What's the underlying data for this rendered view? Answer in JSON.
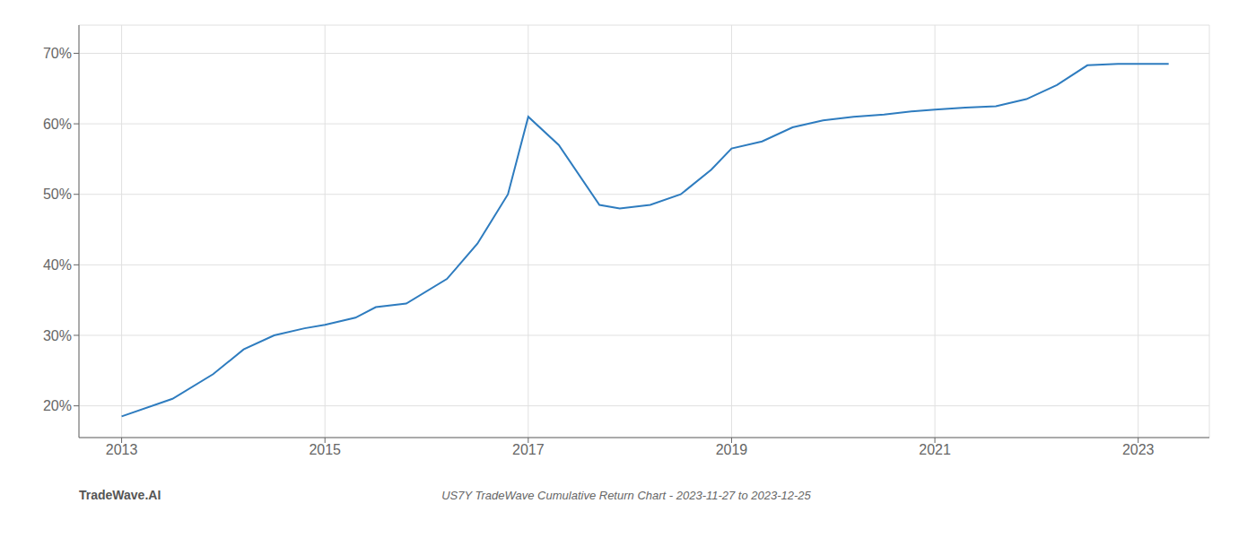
{
  "chart_data": {
    "type": "line",
    "title": "US7Y TradeWave Cumulative Return Chart - 2023-11-27 to 2023-12-25",
    "annotations": [
      "TradeWave.AI"
    ],
    "x": [
      2013.0,
      2013.5,
      2013.9,
      2014.2,
      2014.5,
      2014.8,
      2015.0,
      2015.3,
      2015.5,
      2015.8,
      2016.2,
      2016.5,
      2016.8,
      2017.0,
      2017.3,
      2017.7,
      2017.9,
      2018.2,
      2018.5,
      2018.8,
      2019.0,
      2019.3,
      2019.6,
      2019.9,
      2020.2,
      2020.5,
      2020.8,
      2021.0,
      2021.3,
      2021.6,
      2021.9,
      2022.2,
      2022.5,
      2022.8,
      2023.0,
      2023.3
    ],
    "values": [
      18.5,
      21.0,
      24.5,
      28.0,
      30.0,
      31.0,
      31.5,
      32.5,
      34.0,
      34.5,
      38.0,
      43.0,
      50.0,
      61.0,
      57.0,
      48.5,
      48.0,
      48.5,
      50.0,
      53.5,
      56.5,
      57.5,
      59.5,
      60.5,
      61.0,
      61.3,
      61.8,
      62.0,
      62.3,
      62.5,
      63.5,
      65.5,
      68.3,
      68.5,
      68.5,
      68.5
    ],
    "color": "#2e7cbf",
    "xlim": [
      2012.58,
      2023.7
    ],
    "xticks": [
      2013,
      2015,
      2017,
      2019,
      2021,
      2023
    ],
    "ylim": [
      15.5,
      74.0
    ],
    "yticks": [
      {
        "value": 20,
        "label": "20%"
      },
      {
        "value": 30,
        "label": "30%"
      },
      {
        "value": 40,
        "label": "40%"
      },
      {
        "value": 50,
        "label": "50%"
      },
      {
        "value": 60,
        "label": "60%"
      },
      {
        "value": 70,
        "label": "70%"
      }
    ],
    "grid": true
  }
}
